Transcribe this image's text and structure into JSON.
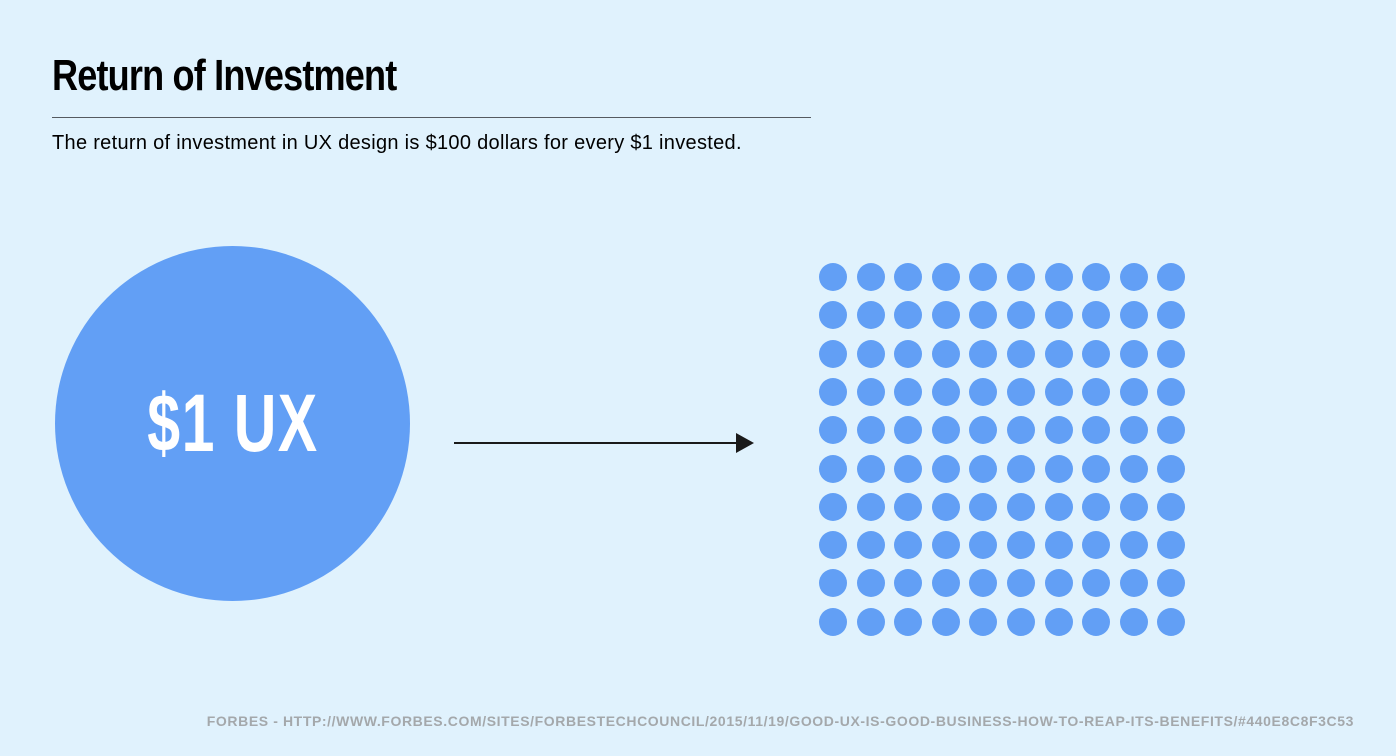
{
  "header": {
    "title": "Return of Investment",
    "subtitle": "The return of investment in UX design is $100 dollars for every $1 invested."
  },
  "diagram": {
    "input_label": "$1 UX",
    "output_dot_count": 100,
    "output_grid": {
      "rows": 10,
      "cols": 10
    },
    "accent_color": "#629ff5",
    "arrow_color": "#1a1a1a",
    "arrow_icon": "arrow-right-icon"
  },
  "footer": {
    "source": "FORBES - HTTP://WWW.FORBES.COM/SITES/FORBESTECHCOUNCIL/2015/11/19/GOOD-UX-IS-GOOD-BUSINESS-HOW-TO-REAP-ITS-BENEFITS/#440E8C8F3C53"
  }
}
